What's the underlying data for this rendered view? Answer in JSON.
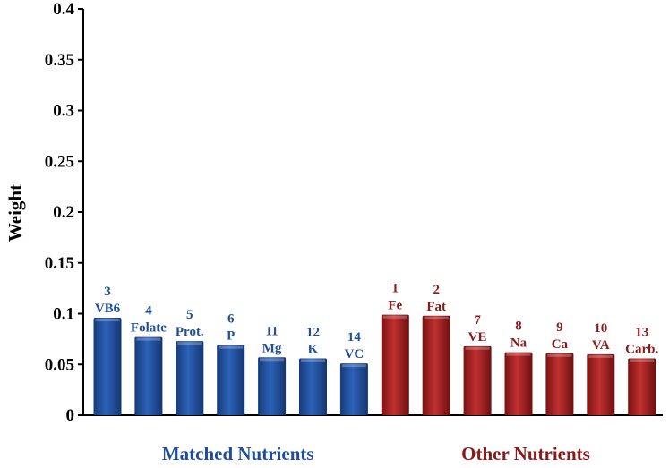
{
  "chart_data": {
    "type": "bar",
    "title": "",
    "xlabel": "",
    "ylabel": "Weight",
    "ylim": [
      0,
      0.4
    ],
    "yticks": [
      "0",
      "0.05",
      "0.1",
      "0.15",
      "0.2",
      "0.25",
      "0.3",
      "0.35",
      "0.4"
    ],
    "grid": false,
    "groups": [
      {
        "name": "Matched Nutrients",
        "color": "#1f4e9c",
        "bars": [
          {
            "rank": "3",
            "label": "VB6",
            "value": 0.096
          },
          {
            "rank": "4",
            "label": "Folate",
            "value": 0.077
          },
          {
            "rank": "5",
            "label": "Prot.",
            "value": 0.073
          },
          {
            "rank": "6",
            "label": "P",
            "value": 0.069
          },
          {
            "rank": "11",
            "label": "Mg",
            "value": 0.057
          },
          {
            "rank": "12",
            "label": "K",
            "value": 0.056
          },
          {
            "rank": "14",
            "label": "VC",
            "value": 0.051
          }
        ]
      },
      {
        "name": "Other Nutrients",
        "color": "#8b1a1a",
        "bars": [
          {
            "rank": "1",
            "label": "Fe",
            "value": 0.099
          },
          {
            "rank": "2",
            "label": "Fat",
            "value": 0.098
          },
          {
            "rank": "7",
            "label": "VE",
            "value": 0.068
          },
          {
            "rank": "8",
            "label": "Na",
            "value": 0.062
          },
          {
            "rank": "9",
            "label": "Ca",
            "value": 0.061
          },
          {
            "rank": "10",
            "label": "VA",
            "value": 0.06
          },
          {
            "rank": "13",
            "label": "Carb.",
            "value": 0.056
          }
        ]
      }
    ]
  }
}
